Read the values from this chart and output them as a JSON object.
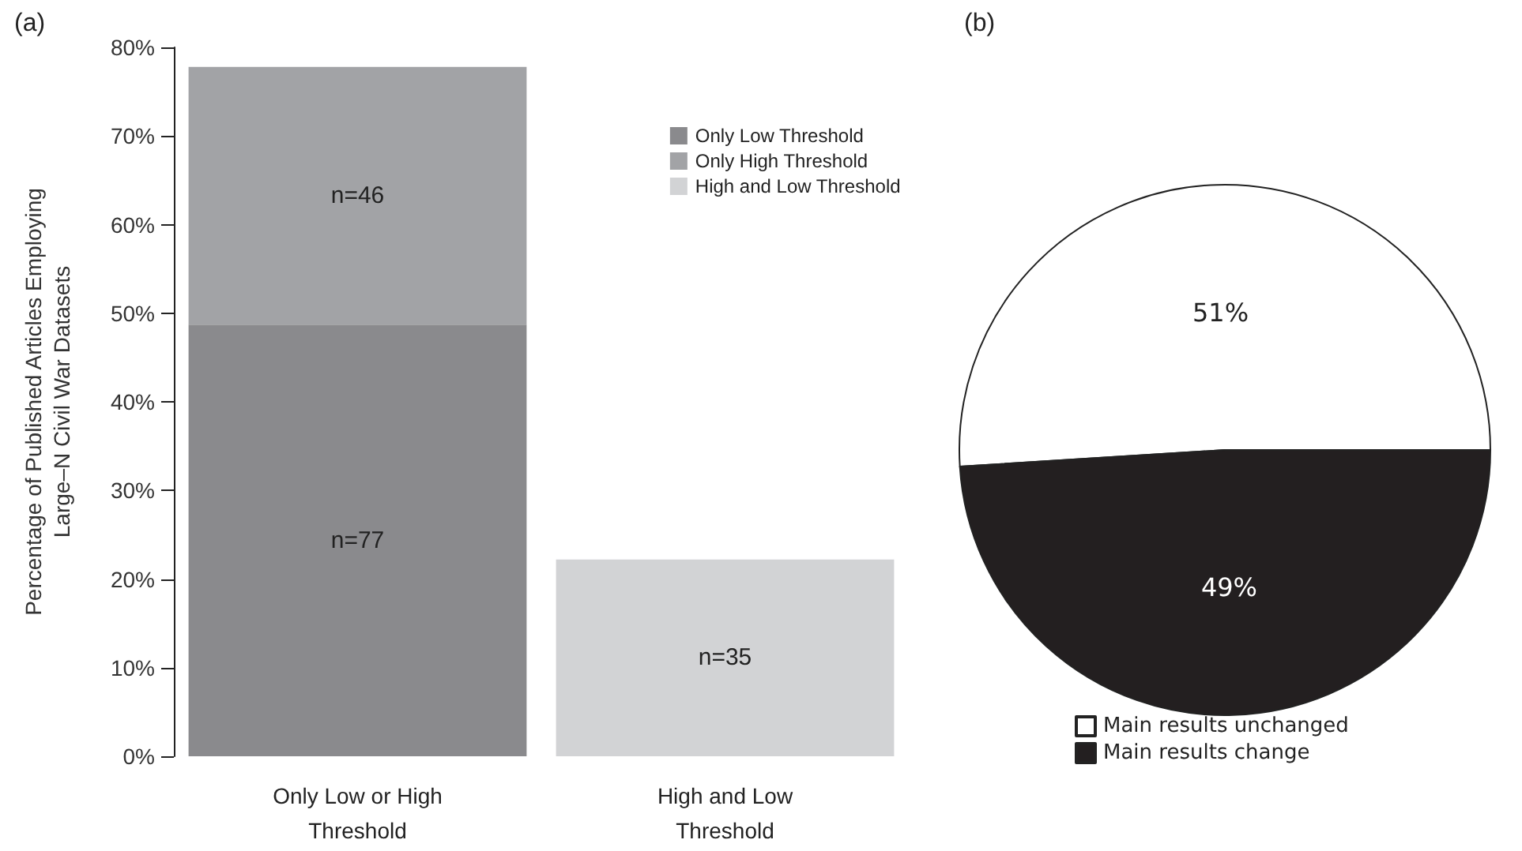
{
  "chart_data": [
    {
      "type": "bar",
      "title": "(a)",
      "ylabel": "Percentage of Published Articles Employing\nLarge–N Civil War Datasets",
      "categories": [
        "Only Low or High\nThreshold",
        "High and Low\nThreshold"
      ],
      "stacked": true,
      "series": [
        {
          "name": "Only Low Threshold",
          "color": "#8a8a8d",
          "values": [
            48.7,
            null
          ]
        },
        {
          "name": "Only High Threshold",
          "color": "#a2a3a6",
          "values": [
            29.1,
            null
          ]
        },
        {
          "name": "High and Low Threshold",
          "color": "#d2d3d5",
          "values": [
            null,
            22.2
          ]
        }
      ],
      "annotations": [
        "n=77",
        "n=46",
        "n=35"
      ],
      "ylim": [
        0,
        80
      ],
      "yticks": [
        {
          "value": 0,
          "label": "0%"
        },
        {
          "value": 10,
          "label": "10%"
        },
        {
          "value": 20,
          "label": "20%"
        },
        {
          "value": 30,
          "label": "30%"
        },
        {
          "value": 40,
          "label": "40%"
        },
        {
          "value": 50,
          "label": "50%"
        },
        {
          "value": 60,
          "label": "60%"
        },
        {
          "value": 70,
          "label": "70%"
        },
        {
          "value": 80,
          "label": "80%"
        }
      ],
      "grid": false,
      "legend": "top right"
    },
    {
      "type": "pie",
      "title": "(b)",
      "categories": [
        "Main results unchanged",
        "Main results change"
      ],
      "values": [
        51,
        49
      ],
      "colors": [
        "#ffffff",
        "#231f20"
      ],
      "value_labels": [
        "51%",
        "49%"
      ],
      "legend": "bottom"
    }
  ]
}
